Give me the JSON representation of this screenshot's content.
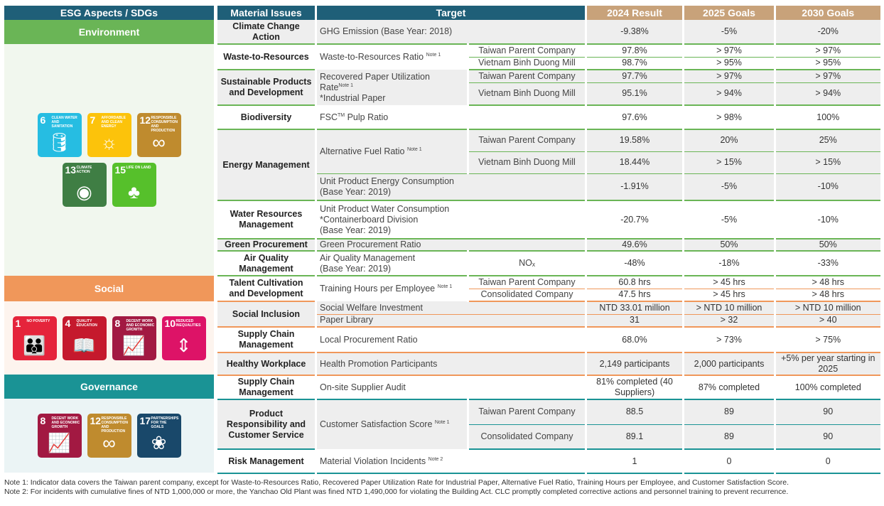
{
  "headers": [
    "ESG Aspects / SDGs",
    "Material Issues",
    "Target",
    "2024 Result",
    "2025 Goals",
    "2030 Goals"
  ],
  "colors": {
    "header": "#1f5f78",
    "result_header": "#c8a27a",
    "environment": "#6ab556",
    "social": "#f0975a",
    "governance": "#1a9395"
  },
  "sections": [
    {
      "name": "Environment",
      "color": "#6ab556",
      "bg": "#f1f7ee",
      "sdgs": [
        [
          {
            "n": "6",
            "label": "Clean Water and Sanitation",
            "color": "#26bde2",
            "icon": "water-glass-icon"
          },
          {
            "n": "7",
            "label": "Affordable and Clean Energy",
            "color": "#fcc30b",
            "icon": "sun-icon"
          },
          {
            "n": "12",
            "label": "Responsible Consumption and Production",
            "color": "#bf8b2e",
            "icon": "infinity-icon"
          }
        ],
        [
          {
            "n": "13",
            "label": "Climate Action",
            "color": "#3f7e44",
            "icon": "eye-globe-icon"
          },
          {
            "n": "15",
            "label": "Life on Land",
            "color": "#56c02b",
            "icon": "tree-icon"
          }
        ]
      ]
    },
    {
      "name": "Social",
      "color": "#f0975a",
      "bg": "#fdf4ee",
      "sdgs": [
        [
          {
            "n": "1",
            "label": "No Poverty",
            "color": "#e5243b",
            "icon": "family-icon"
          },
          {
            "n": "4",
            "label": "Quality Education",
            "color": "#c5192d",
            "icon": "book-icon"
          },
          {
            "n": "8",
            "label": "Decent Work and Economic Growth",
            "color": "#a21942",
            "icon": "growth-chart-icon"
          },
          {
            "n": "10",
            "label": "Reduced Inequalities",
            "color": "#dd1367",
            "icon": "equal-arrows-icon"
          }
        ]
      ]
    },
    {
      "name": "Governance",
      "color": "#1a9395",
      "bg": "#ebf4f5",
      "sdgs": [
        [
          {
            "n": "8",
            "label": "Decent Work and Economic Growth",
            "color": "#a21942",
            "icon": "growth-chart-icon"
          },
          {
            "n": "12",
            "label": "Responsible Consumption and Production",
            "color": "#bf8b2e",
            "icon": "infinity-icon"
          },
          {
            "n": "17",
            "label": "Partnerships for the Goals",
            "color": "#19486a",
            "icon": "rings-icon"
          }
        ]
      ]
    }
  ],
  "groups": [
    {
      "section": 0,
      "issue": "Climate Change Action",
      "target": [
        {
          "t": "GHG Emission (Base Year: 2018)"
        }
      ],
      "rows": [
        {
          "sub": "",
          "r": "-9.38%",
          "g25": "-5%",
          "g30": "-20%"
        }
      ]
    },
    {
      "section": 0,
      "issue": "Waste-to-Resources",
      "target": [
        {
          "t": "Waste-to-Resources Ratio "
        },
        {
          "sup": "Note 1"
        }
      ],
      "rows": [
        {
          "sub": "Taiwan Parent Company",
          "r": "97.8%",
          "g25": "> 97%",
          "g30": "> 97%"
        },
        {
          "sub": "Vietnam Binh Duong Mill",
          "r": "98.7%",
          "g25": "> 95%",
          "g30": "> 95%"
        }
      ]
    },
    {
      "section": 0,
      "issue": "Sustainable Products and Development",
      "target": [
        {
          "t": "Recovered Paper Utilization"
        },
        {
          "br": 1
        },
        {
          "t": "Rate"
        },
        {
          "sup": "Note 1"
        },
        {
          "br": 1
        },
        {
          "t": "*Industrial Paper"
        }
      ],
      "rows": [
        {
          "sub": "Taiwan Parent Company",
          "r": "97.7%",
          "g25": "> 97%",
          "g30": "> 97%"
        },
        {
          "sub": "Vietnam Binh Duong Mill",
          "r": "95.1%",
          "g25": "> 94%",
          "g30": "> 94%"
        }
      ]
    },
    {
      "section": 0,
      "issue": "Biodiversity",
      "target": [
        {
          "t": "FSC"
        },
        {
          "sup": "TM"
        },
        {
          "t": " Pulp Ratio"
        }
      ],
      "rows": [
        {
          "sub": "",
          "r": "97.6%",
          "g25": "> 98%",
          "g30": "100%"
        }
      ]
    },
    {
      "section": 0,
      "issue": "Energy Management",
      "target": [
        {
          "t": "Alternative Fuel Ratio "
        },
        {
          "sup": "Note 1"
        }
      ],
      "rows": [
        {
          "sub": "Taiwan Parent Company",
          "r": "19.58%",
          "g25": "20%",
          "g30": "25%"
        },
        {
          "sub": "Vietnam Binh Duong Mill",
          "r": "18.44%",
          "g25": "> 15%",
          "g30": "> 15%"
        }
      ],
      "extra": {
        "target": [
          {
            "t": "Unit Product Energy Consumption"
          },
          {
            "br": 1
          },
          {
            "t": "(Base Year: 2019)"
          }
        ],
        "r": "-1.91%",
        "g25": "-5%",
        "g30": "-10%"
      }
    },
    {
      "section": 0,
      "issue": "Water Resources Management",
      "target": [
        {
          "t": "Unit Product Water Consumption"
        },
        {
          "br": 1
        },
        {
          "t": "*Containerboard Division"
        },
        {
          "br": 1
        },
        {
          "t": "(Base Year: 2019)"
        }
      ],
      "rows": [
        {
          "sub": "",
          "r": "-20.7%",
          "g25": "-5%",
          "g30": "-10%"
        }
      ]
    },
    {
      "section": 0,
      "issue": "Green Procurement",
      "target": [
        {
          "t": "Green Procurement Ratio"
        }
      ],
      "rows": [
        {
          "sub": "",
          "r": "49.6%",
          "g25": "50%",
          "g30": "50%"
        }
      ]
    },
    {
      "section": 0,
      "issue": "Air Quality Management",
      "target": [
        {
          "t": "Air Quality Management"
        },
        {
          "br": 1
        },
        {
          "t": "(Base Year: 2019)"
        }
      ],
      "rows": [
        {
          "sub": "NOₓ",
          "r": "-48%",
          "g25": "-18%",
          "g30": "-33%"
        }
      ]
    },
    {
      "section": 1,
      "issue": "Talent Cultivation and Development",
      "target": [
        {
          "t": "Training Hours per Employee "
        },
        {
          "sup": "Note 1"
        }
      ],
      "rows": [
        {
          "sub": "Taiwan Parent Company",
          "r": "60.8 hrs",
          "g25": "> 45 hrs",
          "g30": "> 48 hrs"
        },
        {
          "sub": "Consolidated Company",
          "r": "47.5 hrs",
          "g25": "> 45 hrs",
          "g30": "> 48 hrs"
        }
      ]
    },
    {
      "section": 1,
      "issue": "Social Inclusion",
      "target": [
        {
          "t": "Social Welfare Investment"
        }
      ],
      "rows": [
        {
          "sub": "",
          "r": "NTD 33.01 million",
          "g25": "> NTD 10 million",
          "g30": "> NTD 10 million"
        }
      ],
      "extra": {
        "target": [
          {
            "t": "Paper Library"
          }
        ],
        "r": "31",
        "g25": "> 32",
        "g30": "> 40"
      }
    },
    {
      "section": 1,
      "issue": "Supply Chain Management",
      "target": [
        {
          "t": "Local Procurement Ratio"
        }
      ],
      "rows": [
        {
          "sub": "",
          "r": "68.0%",
          "g25": "> 73%",
          "g30": "> 75%"
        }
      ]
    },
    {
      "section": 1,
      "issue": "Healthy Workplace",
      "target": [
        {
          "t": "Health Promotion Participants"
        }
      ],
      "rows": [
        {
          "sub": "",
          "r": "2,149 participants",
          "g25": "2,000 participants",
          "g30": "+5% per year starting in 2025"
        }
      ]
    },
    {
      "section": 2,
      "issue": "Supply Chain Management",
      "target": [
        {
          "t": "On-site Supplier Audit"
        }
      ],
      "rows": [
        {
          "sub": "",
          "r": "81% completed (40 Suppliers)",
          "g25": "87% completed",
          "g30": "100% completed"
        }
      ]
    },
    {
      "section": 2,
      "issue": "Product Responsibility and Customer Service",
      "target": [
        {
          "t": "Customer Satisfaction Score "
        },
        {
          "sup": "Note 1"
        }
      ],
      "rows": [
        {
          "sub": "Taiwan Parent Company",
          "r": "88.5",
          "g25": "89",
          "g30": "90"
        },
        {
          "sub": "Consolidated Company",
          "r": "89.1",
          "g25": "89",
          "g30": "90"
        }
      ]
    },
    {
      "section": 2,
      "issue": "Risk Management",
      "target": [
        {
          "t": "Material Violation Incidents "
        },
        {
          "sup": "Note 2"
        }
      ],
      "rows": [
        {
          "sub": "",
          "r": "1",
          "g25": "0",
          "g30": "0"
        }
      ]
    }
  ],
  "notes": [
    "Note 1: Indicator data covers the Taiwan parent company, except for Waste-to-Resources Ratio, Recovered Paper Utilization Rate for Industrial Paper, Alternative Fuel Ratio, Training Hours per Employee, and Customer Satisfaction Score.",
    "Note 2: For incidents with cumulative fines of NTD 1,000,000 or more, the Yanchao Old Plant was fined NTD 1,490,000 for violating the Building Act. CLC promptly completed corrective actions and personnel training to prevent recurrence."
  ]
}
